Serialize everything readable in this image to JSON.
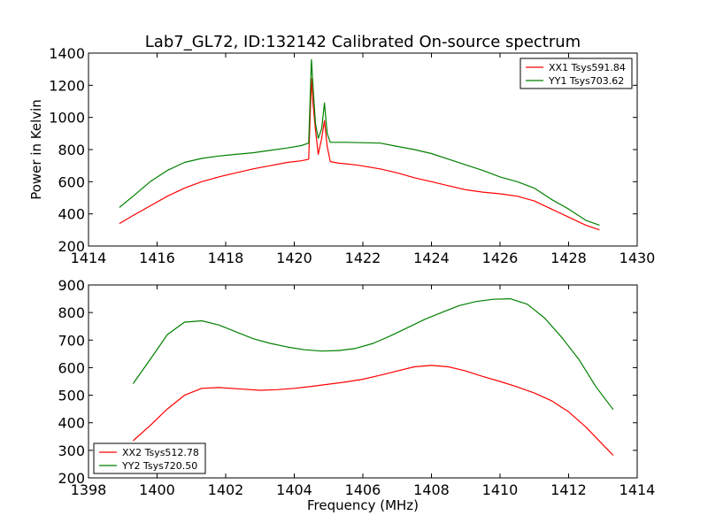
{
  "figure_title": "Lab7_GL72, ID:132142 Calibrated On-source spectrum",
  "colors": {
    "red": "#ff0000",
    "green": "#008000"
  },
  "chart_data": [
    {
      "type": "line",
      "xlabel": "",
      "ylabel": "Power in Kelvin",
      "xlim": [
        1414,
        1430
      ],
      "ylim": [
        200,
        1400
      ],
      "xticks": [
        1414,
        1416,
        1418,
        1420,
        1422,
        1424,
        1426,
        1428,
        1430
      ],
      "yticks": [
        200,
        400,
        600,
        800,
        1000,
        1200,
        1400
      ],
      "legend_position": "top-right",
      "series": [
        {
          "name": "XX1 Tsys591.84",
          "color": "#ff0000",
          "x": [
            1414.9,
            1415.3,
            1415.8,
            1416.3,
            1416.8,
            1417.3,
            1417.8,
            1418.3,
            1418.8,
            1419.3,
            1419.8,
            1420.2,
            1420.42,
            1420.5,
            1420.55,
            1420.62,
            1420.7,
            1420.8,
            1420.88,
            1420.96,
            1421.05,
            1421.3,
            1421.8,
            1422.5,
            1423.0,
            1423.5,
            1424.0,
            1424.5,
            1425.0,
            1425.5,
            1426.0,
            1426.5,
            1427.0,
            1427.5,
            1428.0,
            1428.5,
            1428.9
          ],
          "y": [
            340,
            390,
            450,
            510,
            560,
            600,
            630,
            655,
            680,
            700,
            720,
            730,
            740,
            1240,
            1080,
            920,
            770,
            870,
            980,
            820,
            725,
            715,
            705,
            680,
            655,
            625,
            600,
            575,
            550,
            535,
            525,
            510,
            480,
            430,
            380,
            330,
            300
          ]
        },
        {
          "name": "YY1 Tsys703.62",
          "color": "#008000",
          "x": [
            1414.9,
            1415.3,
            1415.8,
            1416.3,
            1416.8,
            1417.3,
            1417.8,
            1418.3,
            1418.8,
            1419.3,
            1419.8,
            1420.2,
            1420.42,
            1420.5,
            1420.56,
            1420.62,
            1420.7,
            1420.8,
            1420.88,
            1420.96,
            1421.05,
            1421.5,
            1422.5,
            1423.0,
            1423.5,
            1424.0,
            1424.5,
            1425.0,
            1425.5,
            1426.0,
            1426.5,
            1427.0,
            1427.5,
            1428.0,
            1428.5,
            1428.9
          ],
          "y": [
            440,
            510,
            600,
            670,
            720,
            745,
            760,
            770,
            780,
            795,
            810,
            825,
            840,
            1360,
            1150,
            960,
            870,
            930,
            1090,
            900,
            845,
            845,
            840,
            820,
            800,
            775,
            740,
            705,
            670,
            630,
            600,
            560,
            490,
            430,
            360,
            330
          ]
        }
      ]
    },
    {
      "type": "line",
      "xlabel": "Frequency (MHz)",
      "ylabel": "",
      "xlim": [
        1398,
        1414
      ],
      "ylim": [
        200,
        900
      ],
      "xticks": [
        1398,
        1400,
        1402,
        1404,
        1406,
        1408,
        1410,
        1412,
        1414
      ],
      "yticks": [
        200,
        300,
        400,
        500,
        600,
        700,
        800,
        900
      ],
      "legend_position": "bottom-left",
      "series": [
        {
          "name": "XX2 Tsys512.78",
          "color": "#ff0000",
          "x": [
            1399.3,
            1399.8,
            1400.3,
            1400.8,
            1401.3,
            1401.8,
            1402.5,
            1403.0,
            1403.5,
            1404.0,
            1404.5,
            1405.0,
            1405.5,
            1406.0,
            1406.5,
            1407.0,
            1407.5,
            1408.0,
            1408.5,
            1409.0,
            1409.5,
            1410.0,
            1410.5,
            1411.0,
            1411.5,
            1412.0,
            1412.5,
            1413.0,
            1413.3
          ],
          "y": [
            335,
            390,
            450,
            500,
            525,
            528,
            522,
            518,
            520,
            525,
            532,
            540,
            548,
            558,
            572,
            588,
            603,
            608,
            603,
            588,
            568,
            550,
            530,
            508,
            480,
            440,
            385,
            320,
            282
          ]
        },
        {
          "name": "YY2 Tsys720.50",
          "color": "#008000",
          "x": [
            1399.3,
            1399.8,
            1400.3,
            1400.8,
            1401.3,
            1401.8,
            1402.3,
            1402.8,
            1403.3,
            1403.8,
            1404.3,
            1404.8,
            1405.3,
            1405.8,
            1406.3,
            1406.8,
            1407.3,
            1407.8,
            1408.3,
            1408.8,
            1409.3,
            1409.8,
            1410.3,
            1410.8,
            1411.3,
            1411.8,
            1412.3,
            1412.8,
            1413.3
          ],
          "y": [
            542,
            630,
            720,
            765,
            770,
            755,
            730,
            705,
            688,
            675,
            665,
            660,
            662,
            670,
            688,
            715,
            745,
            775,
            800,
            825,
            840,
            848,
            850,
            830,
            780,
            710,
            630,
            530,
            448
          ]
        }
      ]
    }
  ]
}
